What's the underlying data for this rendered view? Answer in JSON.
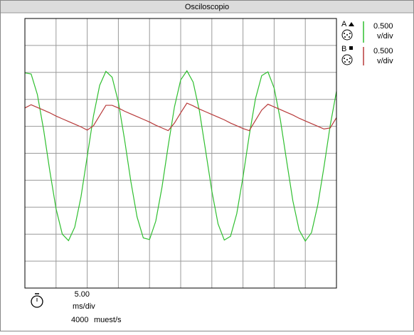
{
  "window_title": "Osciloscopio",
  "channels": [
    {
      "label": "A",
      "scale": "0.500",
      "unit": "v/div"
    },
    {
      "label": "B",
      "scale": "0.500",
      "unit": "v/div"
    }
  ],
  "timebase": {
    "scale": "5.00",
    "unit": "ms/div",
    "rate": "4000",
    "rate_unit": "muest/s"
  },
  "chart_data": {
    "type": "line",
    "x": [
      0,
      1,
      2,
      3,
      4,
      5,
      6,
      7,
      8,
      9,
      10,
      11,
      12,
      13,
      14,
      15,
      16,
      17,
      18,
      19,
      20,
      21,
      22,
      23,
      24,
      25,
      26,
      27,
      28,
      29,
      30,
      31,
      32,
      33,
      34,
      35,
      36,
      37,
      38,
      39,
      40,
      41,
      42,
      43,
      44,
      45,
      46,
      47,
      48,
      49,
      50
    ],
    "series": [
      {
        "color": "#2fbf2f",
        "values": [
          1.49,
          1.47,
          1.09,
          0.44,
          -0.33,
          -1.03,
          -1.5,
          -1.62,
          -1.37,
          -0.81,
          -0.06,
          0.69,
          1.26,
          1.52,
          1.41,
          0.95,
          0.25,
          -0.52,
          -1.18,
          -1.57,
          -1.6,
          -1.26,
          -0.63,
          0.14,
          0.86,
          1.36,
          1.53,
          1.32,
          0.79,
          0.05,
          -0.7,
          -1.31,
          -1.61,
          -1.54,
          -1.12,
          -0.44,
          0.33,
          1.01,
          1.44,
          1.51,
          1.21,
          0.62,
          -0.14,
          -0.88,
          -1.42,
          -1.63,
          -1.47,
          -0.96,
          -0.25,
          0.52,
          1.15
        ]
      },
      {
        "color": "#b83a3a",
        "values": [
          0.84,
          0.9,
          0.85,
          0.8,
          0.75,
          0.69,
          0.64,
          0.59,
          0.54,
          0.49,
          0.43,
          0.51,
          0.7,
          0.89,
          0.89,
          0.84,
          0.78,
          0.73,
          0.68,
          0.63,
          0.58,
          0.52,
          0.47,
          0.42,
          0.56,
          0.75,
          0.93,
          0.88,
          0.82,
          0.77,
          0.72,
          0.67,
          0.62,
          0.56,
          0.51,
          0.46,
          0.42,
          0.61,
          0.8,
          0.91,
          0.86,
          0.81,
          0.76,
          0.71,
          0.65,
          0.6,
          0.55,
          0.5,
          0.45,
          0.47,
          0.66
        ]
      }
    ],
    "xlim": [
      0,
      50
    ],
    "ylim": [
      -2.5,
      2.5
    ],
    "xticks": [
      0,
      5,
      10,
      15,
      20,
      25,
      30,
      35,
      40,
      45,
      50
    ],
    "yticks": [
      -2.5,
      -2,
      -1.5,
      -1,
      -0.5,
      0,
      0.5,
      1,
      1.5,
      2,
      2.5
    ],
    "grid": true
  }
}
